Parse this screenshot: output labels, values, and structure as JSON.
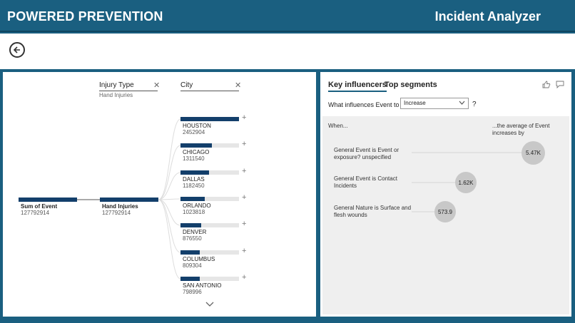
{
  "header": {
    "brand": "POWERED PREVENTION",
    "title": "Incident Analyzer"
  },
  "tree": {
    "col1": {
      "header": "Injury Type",
      "subtitle": "Hand Injuries"
    },
    "col2": {
      "header": "City"
    },
    "root": {
      "label": "Sum of Event",
      "value": "127792914"
    },
    "level1": {
      "label": "Hand Injuries",
      "value": "127792914"
    },
    "cities": [
      {
        "name": "HOUSTON",
        "value": "2452904",
        "fill": 1.0
      },
      {
        "name": "CHICAGO",
        "value": "1311540",
        "fill": 0.535
      },
      {
        "name": "DALLAS",
        "value": "1182450",
        "fill": 0.482
      },
      {
        "name": "ORLANDO",
        "value": "1023818",
        "fill": 0.417
      },
      {
        "name": "DENVER",
        "value": "876550",
        "fill": 0.357
      },
      {
        "name": "COLUMBUS",
        "value": "809304",
        "fill": 0.33
      },
      {
        "name": "SAN ANTONIO",
        "value": "798996",
        "fill": 0.326
      }
    ]
  },
  "ki": {
    "tabs": [
      "Key influencers",
      "Top segments"
    ],
    "question": "What influences Event to",
    "selected": "Increase",
    "q_mark": "?",
    "when": "When...",
    "avg_line1": "...the average of Event",
    "avg_line2": "increases by",
    "items": [
      {
        "text": "General Event is Event or exposure? unspecified",
        "value": "5.47K"
      },
      {
        "text": "General Event is Contact Incidents",
        "value": "1.62K"
      },
      {
        "text": "General Nature is Surface and flesh wounds",
        "value": "573.9"
      }
    ]
  }
}
